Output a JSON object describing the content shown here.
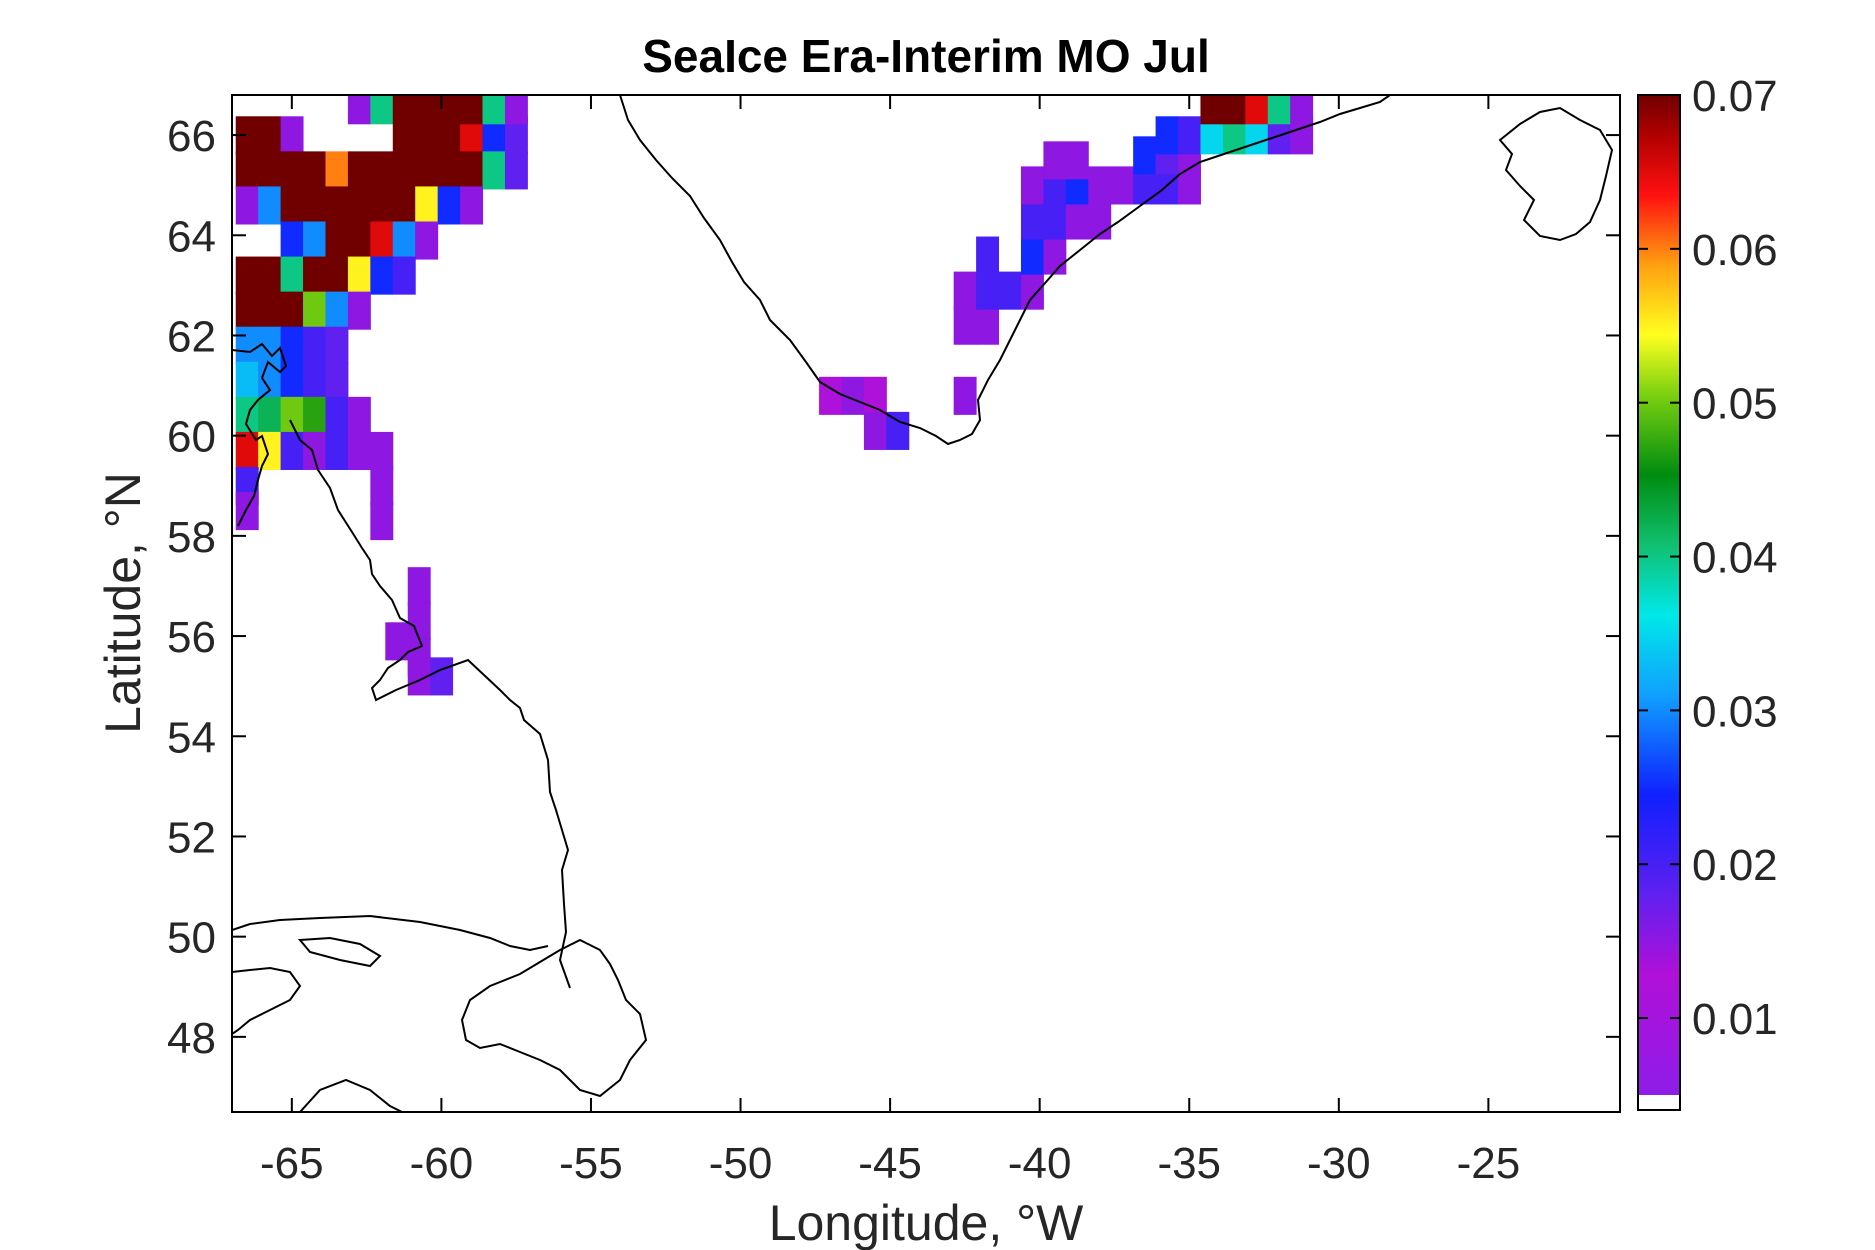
{
  "chart_data": {
    "type": "heatmap",
    "title": "SeaIce Era-Interim MO Jul",
    "xlabel": "Longitude, °W",
    "ylabel": "Latitude, °N",
    "xlim": [
      -67,
      -20.6
    ],
    "ylim": [
      46.5,
      66.8
    ],
    "x_ticks": [
      -65,
      -60,
      -55,
      -50,
      -45,
      -40,
      -35,
      -30,
      -25
    ],
    "y_ticks": [
      48,
      50,
      52,
      54,
      56,
      58,
      60,
      62,
      64,
      66
    ],
    "colorbar": {
      "range": [
        0.005,
        0.07
      ],
      "ticks": [
        "0.01",
        "0.02",
        "0.03",
        "0.04",
        "0.05",
        "0.06",
        "0.07"
      ],
      "tick_values": [
        0.01,
        0.02,
        0.03,
        0.04,
        0.05,
        0.06,
        0.07
      ]
    },
    "cell_size_deg": [
      0.75,
      0.75
    ],
    "cells": [
      [
        -66.5,
        66.0,
        0.07
      ],
      [
        -65.75,
        66.0,
        0.07
      ],
      [
        -65.0,
        66.0,
        0.015
      ],
      [
        -61.25,
        66.0,
        0.07
      ],
      [
        -60.5,
        66.0,
        0.07
      ],
      [
        -59.75,
        66.0,
        0.07
      ],
      [
        -59.0,
        66.0,
        0.065
      ],
      [
        -58.25,
        66.0,
        0.025
      ],
      [
        -57.5,
        66.0,
        0.018
      ],
      [
        -62.75,
        66.6,
        0.015
      ],
      [
        -62.0,
        66.6,
        0.04
      ],
      [
        -61.25,
        66.6,
        0.07
      ],
      [
        -60.5,
        66.6,
        0.07
      ],
      [
        -59.75,
        66.6,
        0.07
      ],
      [
        -59.0,
        66.6,
        0.07
      ],
      [
        -58.25,
        66.6,
        0.04
      ],
      [
        -57.5,
        66.6,
        0.015
      ],
      [
        -66.5,
        65.3,
        0.07
      ],
      [
        -65.75,
        65.3,
        0.07
      ],
      [
        -65.0,
        65.3,
        0.07
      ],
      [
        -64.25,
        65.3,
        0.07
      ],
      [
        -63.5,
        65.3,
        0.06
      ],
      [
        -62.75,
        65.3,
        0.07
      ],
      [
        -62.0,
        65.3,
        0.07
      ],
      [
        -61.25,
        65.3,
        0.07
      ],
      [
        -60.5,
        65.3,
        0.07
      ],
      [
        -59.75,
        65.3,
        0.07
      ],
      [
        -59.0,
        65.3,
        0.07
      ],
      [
        -58.25,
        65.3,
        0.04
      ],
      [
        -57.5,
        65.3,
        0.018
      ],
      [
        -66.5,
        64.6,
        0.015
      ],
      [
        -65.75,
        64.6,
        0.03
      ],
      [
        -65.0,
        64.6,
        0.07
      ],
      [
        -64.25,
        64.6,
        0.07
      ],
      [
        -63.5,
        64.6,
        0.07
      ],
      [
        -62.75,
        64.6,
        0.07
      ],
      [
        -62.0,
        64.6,
        0.07
      ],
      [
        -61.25,
        64.6,
        0.07
      ],
      [
        -60.5,
        64.6,
        0.055
      ],
      [
        -59.75,
        64.6,
        0.025
      ],
      [
        -59.0,
        64.6,
        0.015
      ],
      [
        -65.0,
        63.9,
        0.025
      ],
      [
        -64.25,
        63.9,
        0.03
      ],
      [
        -63.5,
        63.9,
        0.07
      ],
      [
        -62.75,
        63.9,
        0.07
      ],
      [
        -62.0,
        63.9,
        0.065
      ],
      [
        -61.25,
        63.9,
        0.03
      ],
      [
        -60.5,
        63.9,
        0.015
      ],
      [
        -66.5,
        63.2,
        0.07
      ],
      [
        -65.75,
        63.2,
        0.07
      ],
      [
        -65.0,
        63.2,
        0.04
      ],
      [
        -64.25,
        63.2,
        0.07
      ],
      [
        -63.5,
        63.2,
        0.07
      ],
      [
        -62.75,
        63.2,
        0.055
      ],
      [
        -62.0,
        63.2,
        0.025
      ],
      [
        -61.25,
        63.2,
        0.02
      ],
      [
        -66.5,
        62.5,
        0.07
      ],
      [
        -65.75,
        62.5,
        0.07
      ],
      [
        -65.0,
        62.5,
        0.07
      ],
      [
        -64.25,
        62.5,
        0.05
      ],
      [
        -63.5,
        62.5,
        0.03
      ],
      [
        -62.75,
        62.5,
        0.015
      ],
      [
        -66.5,
        61.8,
        0.03
      ],
      [
        -65.75,
        61.8,
        0.03
      ],
      [
        -65.0,
        61.8,
        0.025
      ],
      [
        -64.25,
        61.8,
        0.02
      ],
      [
        -63.5,
        61.8,
        0.018
      ],
      [
        -66.5,
        61.1,
        0.033
      ],
      [
        -65.75,
        61.1,
        0.03
      ],
      [
        -65.0,
        61.1,
        0.025
      ],
      [
        -64.25,
        61.1,
        0.02
      ],
      [
        -63.5,
        61.1,
        0.018
      ],
      [
        -66.5,
        60.4,
        0.04
      ],
      [
        -65.75,
        60.4,
        0.042
      ],
      [
        -65.0,
        60.4,
        0.05
      ],
      [
        -64.25,
        60.4,
        0.047
      ],
      [
        -63.5,
        60.4,
        0.02
      ],
      [
        -62.75,
        60.4,
        0.015
      ],
      [
        -66.5,
        59.7,
        0.065
      ],
      [
        -65.75,
        59.7,
        0.055
      ],
      [
        -65.0,
        59.7,
        0.02
      ],
      [
        -64.25,
        59.7,
        0.015
      ],
      [
        -63.5,
        59.7,
        0.02
      ],
      [
        -62.75,
        59.7,
        0.015
      ],
      [
        -62.0,
        59.7,
        0.015
      ],
      [
        -66.5,
        59.0,
        0.02
      ],
      [
        -62.0,
        59.0,
        0.015
      ],
      [
        -66.5,
        58.5,
        0.015
      ],
      [
        -62.0,
        58.3,
        0.015
      ],
      [
        -60.75,
        57.0,
        0.015
      ],
      [
        -60.75,
        56.3,
        0.015
      ],
      [
        -61.5,
        55.9,
        0.015
      ],
      [
        -60.75,
        55.6,
        0.015
      ],
      [
        -60.75,
        55.2,
        0.015
      ],
      [
        -60.0,
        55.2,
        0.018
      ],
      [
        -47.0,
        60.8,
        0.012
      ],
      [
        -46.25,
        60.8,
        0.015
      ],
      [
        -45.5,
        60.8,
        0.012
      ],
      [
        -45.5,
        60.1,
        0.015
      ],
      [
        -44.75,
        60.1,
        0.02
      ],
      [
        -42.5,
        60.8,
        0.015
      ],
      [
        -42.5,
        62.2,
        0.015
      ],
      [
        -41.75,
        62.2,
        0.015
      ],
      [
        -42.5,
        62.9,
        0.015
      ],
      [
        -41.75,
        62.9,
        0.02
      ],
      [
        -41.0,
        62.9,
        0.02
      ],
      [
        -40.25,
        62.9,
        0.015
      ],
      [
        -41.75,
        63.6,
        0.02
      ],
      [
        -40.25,
        63.6,
        0.025
      ],
      [
        -39.5,
        63.6,
        0.015
      ],
      [
        -40.25,
        64.3,
        0.02
      ],
      [
        -39.5,
        64.3,
        0.02
      ],
      [
        -38.75,
        64.3,
        0.015
      ],
      [
        -38.0,
        64.3,
        0.015
      ],
      [
        -40.25,
        65.0,
        0.015
      ],
      [
        -39.5,
        65.0,
        0.02
      ],
      [
        -38.75,
        65.0,
        0.025
      ],
      [
        -38.0,
        65.0,
        0.015
      ],
      [
        -37.25,
        65.0,
        0.015
      ],
      [
        -36.5,
        65.0,
        0.02
      ],
      [
        -35.75,
        65.0,
        0.02
      ],
      [
        -35.0,
        65.0,
        0.015
      ],
      [
        -39.5,
        65.5,
        0.015
      ],
      [
        -38.75,
        65.5,
        0.015
      ],
      [
        -36.5,
        65.6,
        0.025
      ],
      [
        -35.75,
        65.6,
        0.018
      ],
      [
        -35.0,
        65.6,
        0.015
      ],
      [
        -35.75,
        66.0,
        0.025
      ],
      [
        -35.0,
        66.0,
        0.02
      ],
      [
        -34.25,
        66.0,
        0.035
      ],
      [
        -33.5,
        66.0,
        0.04
      ],
      [
        -32.75,
        66.0,
        0.035
      ],
      [
        -32.0,
        66.0,
        0.018
      ],
      [
        -31.25,
        66.0,
        0.015
      ],
      [
        -34.25,
        66.6,
        0.07
      ],
      [
        -33.5,
        66.6,
        0.07
      ],
      [
        -32.75,
        66.6,
        0.065
      ],
      [
        -32.0,
        66.6,
        0.04
      ],
      [
        -31.25,
        66.6,
        0.015
      ]
    ]
  }
}
